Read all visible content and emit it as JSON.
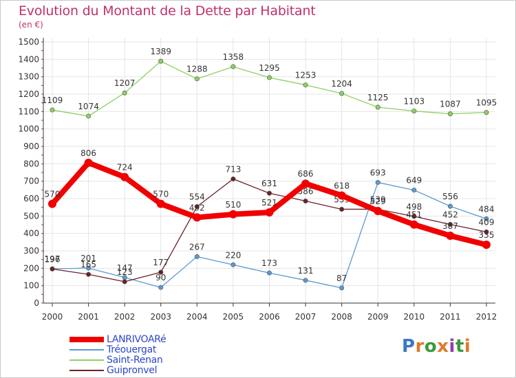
{
  "title": "Evolution du Montant de la Dette par Habitant",
  "unit": "(en €)",
  "logo": {
    "letters": [
      "P",
      "r",
      "o",
      "x",
      "i",
      "t",
      "i"
    ],
    "colors": [
      "#3a78c8",
      "#e0782a",
      "#3a9a3a",
      "#e0782a",
      "#9a3aa8",
      "#3a9a3a",
      "#e0782a"
    ]
  },
  "chart_data": {
    "type": "line",
    "x": [
      "2000",
      "2001",
      "2002",
      "2003",
      "2004",
      "2005",
      "2006",
      "2007",
      "2008",
      "2009",
      "2010",
      "2011",
      "2012"
    ],
    "ylim": [
      0,
      1500
    ],
    "yticks": [
      0,
      100,
      200,
      300,
      400,
      500,
      600,
      700,
      800,
      900,
      1000,
      1100,
      1200,
      1300,
      1400,
      1500
    ],
    "grid": true,
    "series": [
      {
        "name": "Saint-Renan",
        "color": "#8cd060",
        "values": [
          1109,
          1074,
          1207,
          1389,
          1288,
          1358,
          1295,
          1253,
          1204,
          1125,
          1103,
          1087,
          1095
        ]
      },
      {
        "name": "Tréouergat",
        "color": "#5a9ad0",
        "values": [
          197,
          201,
          147,
          90,
          267,
          220,
          173,
          131,
          87,
          693,
          649,
          556,
          484
        ]
      },
      {
        "name": "Guipronvel",
        "color": "#6e1f26",
        "values": [
          196,
          165,
          123,
          177,
          554,
          713,
          631,
          586,
          539,
          539,
          498,
          452,
          409
        ]
      },
      {
        "name": "LANRIVOARé",
        "color": "#f00000",
        "values": [
          570,
          806,
          724,
          570,
          492,
          510,
          521,
          686,
          618,
          529,
          451,
          387,
          335
        ]
      }
    ],
    "legend": [
      "LANRIVOARé",
      "Tréouergat",
      "Saint-Renan",
      "Guipronvel"
    ],
    "legend_position": "bottom-left"
  }
}
